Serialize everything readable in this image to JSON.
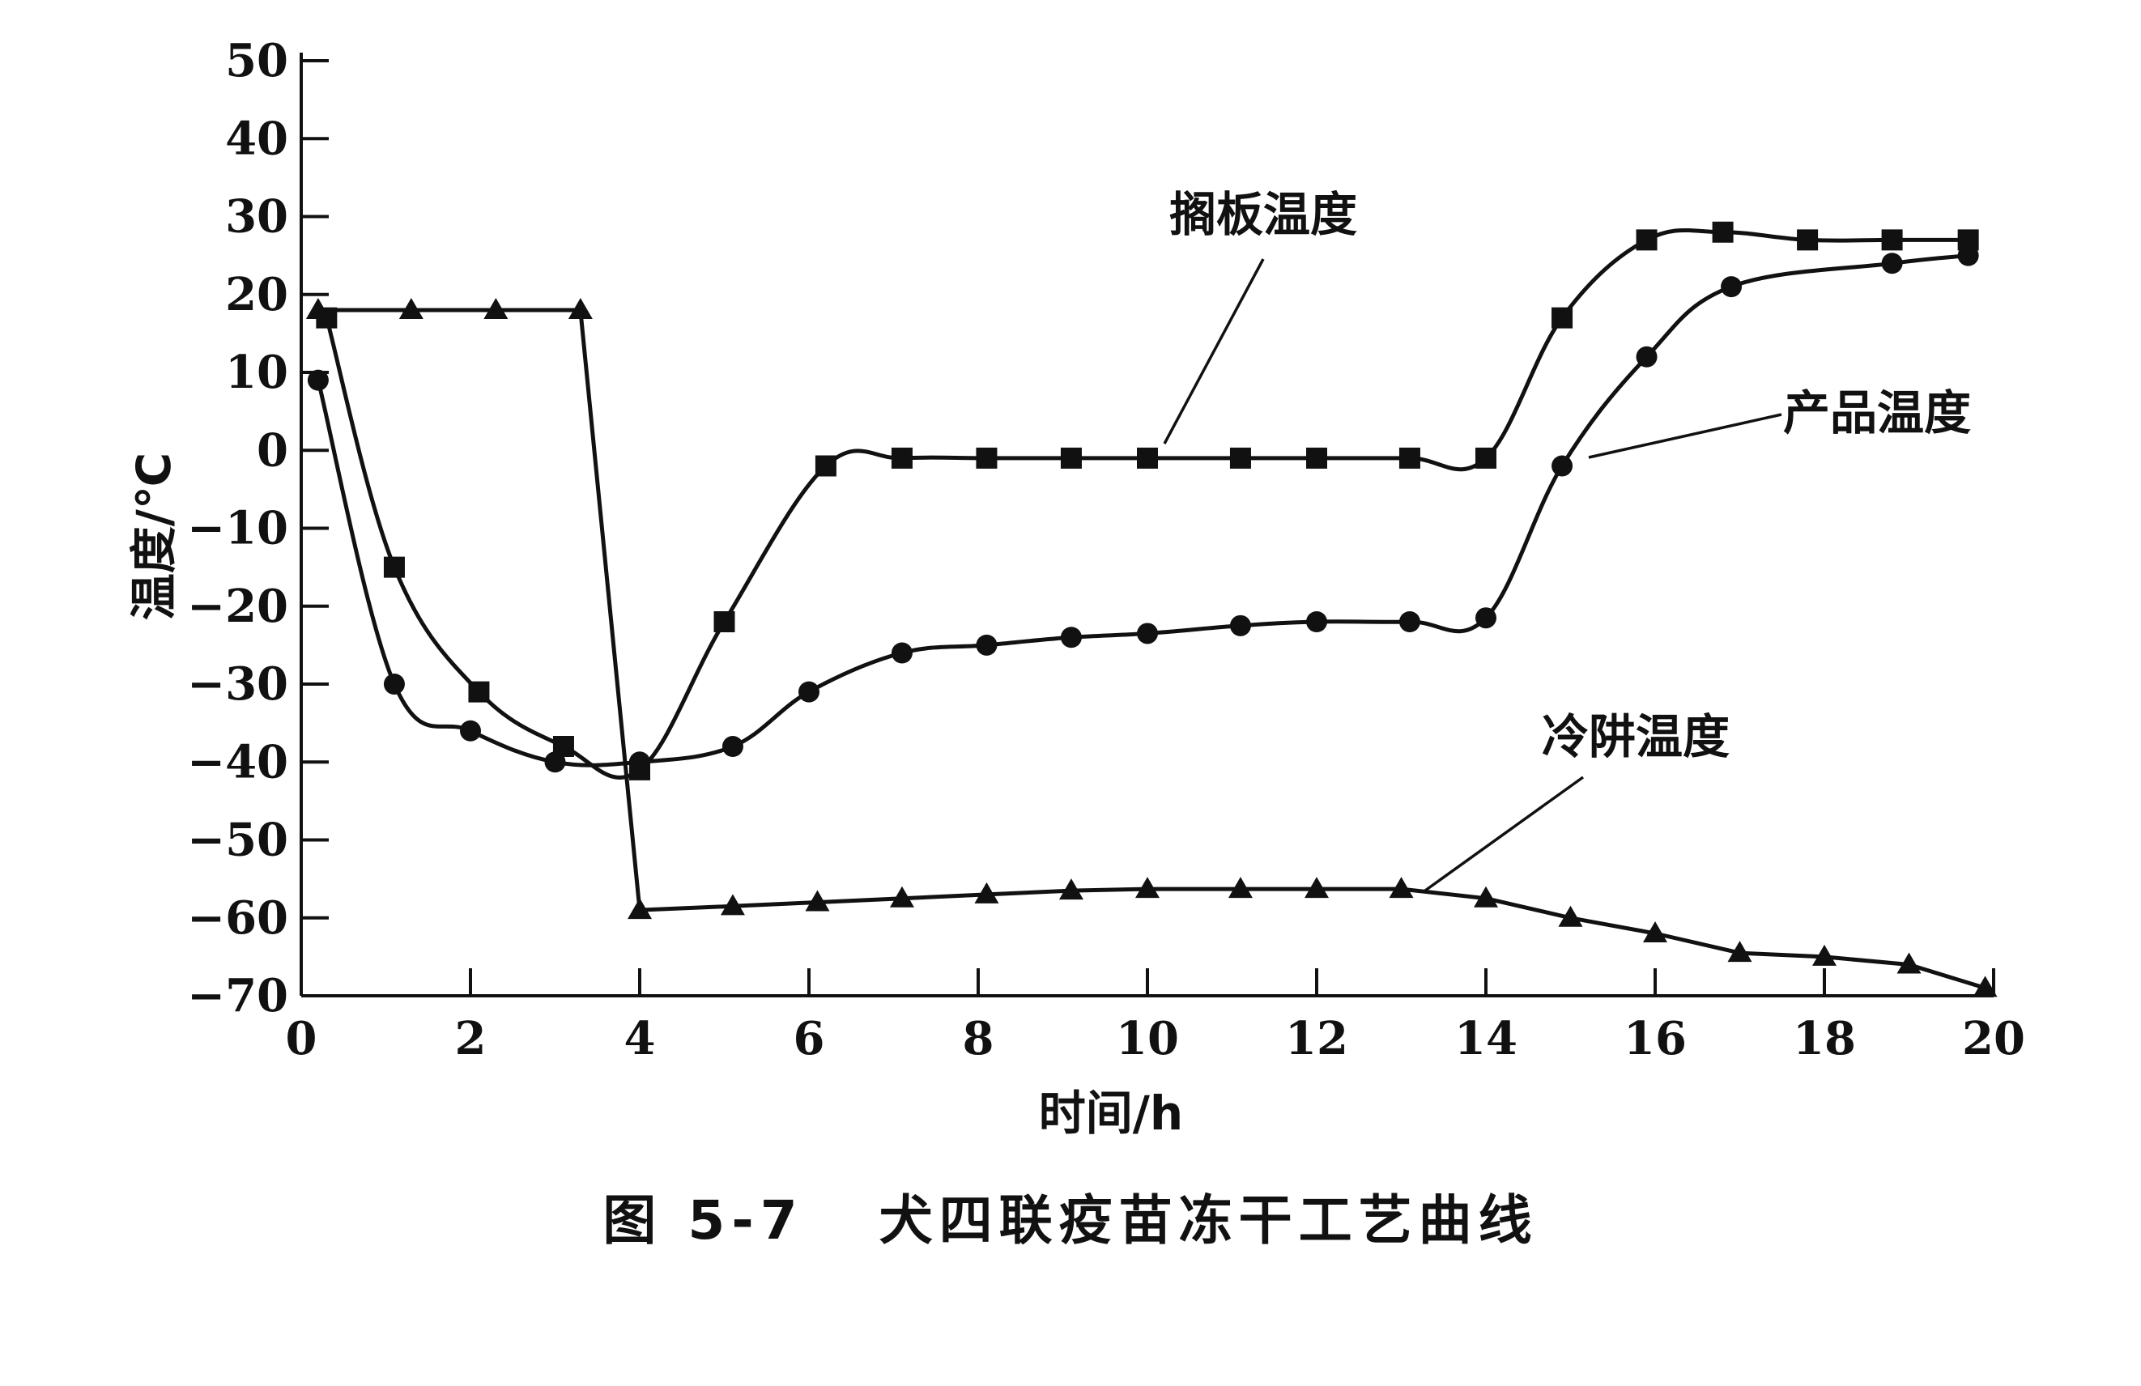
{
  "figure": {
    "caption": "图 5-7   犬四联疫苗冻干工艺曲线"
  },
  "chart_data": {
    "type": "line",
    "title": "",
    "xlabel": "时间/h",
    "ylabel": "温度/℃",
    "xlim": [
      0,
      20
    ],
    "ylim": [
      -70,
      50
    ],
    "xticks": [
      0,
      2,
      4,
      6,
      8,
      10,
      12,
      14,
      16,
      18,
      20
    ],
    "yticks": [
      -70,
      -60,
      -50,
      -40,
      -30,
      -20,
      -10,
      0,
      10,
      20,
      30,
      40,
      50
    ],
    "grid": false,
    "legend": "none",
    "colors": {
      "ink": "#111111",
      "background": "#ffffff"
    },
    "series": [
      {
        "name": "搁板温度",
        "marker": "square",
        "x": [
          0.3,
          1.1,
          2.1,
          3.1,
          4.0,
          5.0,
          6.2,
          7.1,
          8.1,
          9.1,
          10.0,
          11.1,
          12.0,
          13.1,
          14.0,
          14.9,
          15.9,
          16.8,
          17.8,
          18.8,
          19.7
        ],
        "y": [
          17,
          -15,
          -31,
          -38,
          -41,
          -22,
          -2,
          -1,
          -1,
          -1,
          -1,
          -1,
          -1,
          -1,
          -1,
          17,
          27,
          28,
          27,
          27,
          27
        ]
      },
      {
        "name": "产品温度",
        "marker": "circle",
        "x": [
          0.2,
          1.1,
          2.0,
          3.0,
          4.0,
          5.1,
          6.0,
          7.1,
          8.1,
          9.1,
          10.0,
          11.1,
          12.0,
          13.1,
          14.0,
          14.9,
          15.9,
          16.9,
          18.8,
          19.7
        ],
        "y": [
          9,
          -30,
          -36,
          -40,
          -40,
          -38,
          -31,
          -26,
          -25,
          -24,
          -23.5,
          -22.5,
          -22,
          -22,
          -21.5,
          -2,
          12,
          21,
          24,
          25
        ]
      },
      {
        "name": "冷阱温度",
        "marker": "triangle",
        "x": [
          0.2,
          1.3,
          2.3,
          3.3,
          4.0,
          5.1,
          6.1,
          7.1,
          8.1,
          9.1,
          10.0,
          11.1,
          12.0,
          13.0,
          14.0,
          15.0,
          16.0,
          17.0,
          18.0,
          19.0,
          19.9
        ],
        "y": [
          18,
          18,
          18,
          18,
          -59,
          -58.5,
          -58,
          -57.5,
          -57,
          -56.5,
          -56.3,
          -56.3,
          -56.3,
          -56.3,
          -57.5,
          -60,
          -62,
          -64.5,
          -65,
          -66,
          -69
        ]
      }
    ],
    "annotations": [
      {
        "text": "搁板温度",
        "series": "搁板温度"
      },
      {
        "text": "产品温度",
        "series": "产品温度"
      },
      {
        "text": "冷阱温度",
        "series": "冷阱温度"
      }
    ]
  }
}
